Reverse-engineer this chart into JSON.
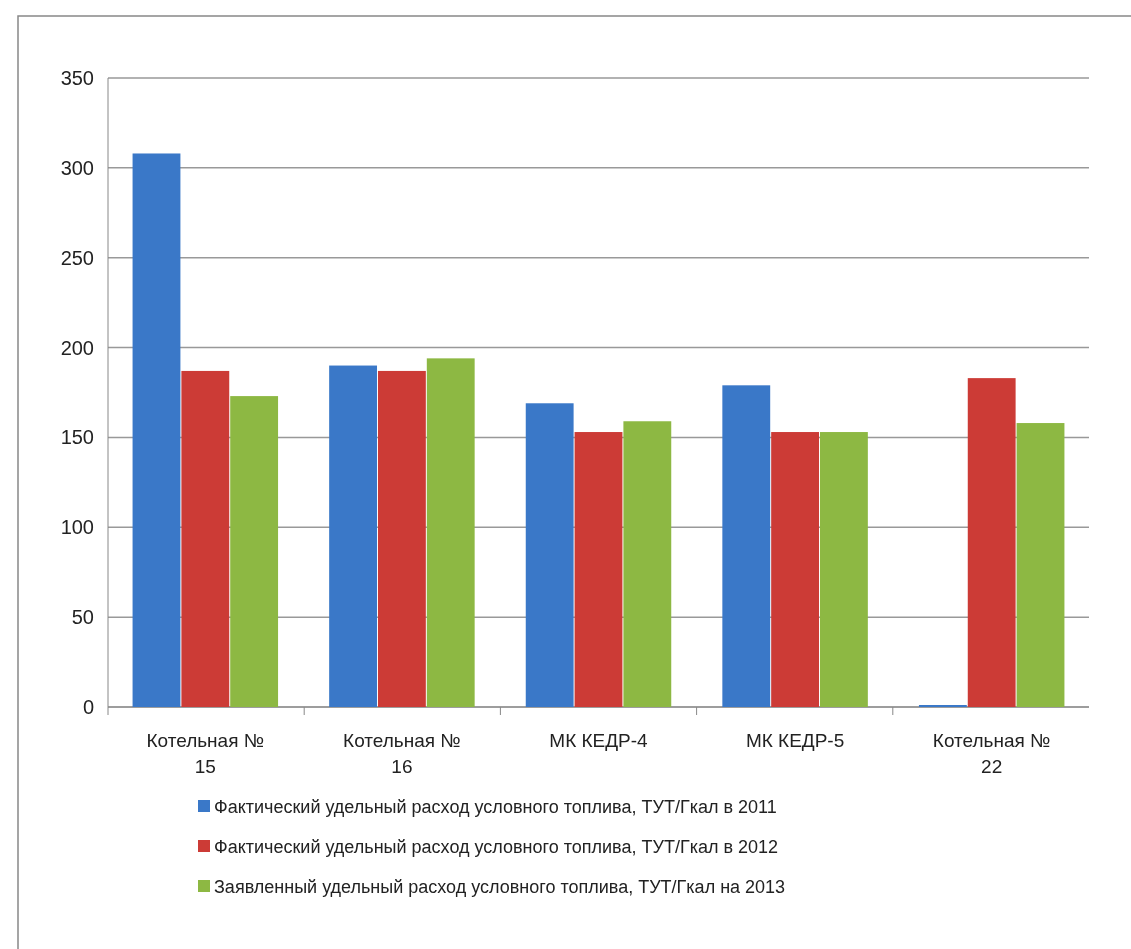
{
  "chart_data": {
    "type": "bar",
    "categories": [
      "Котельная № 15",
      "Котельная № 16",
      "МК КЕДР-4",
      "МК КЕДР-5",
      "Котельная № 22"
    ],
    "series": [
      {
        "name": "Фактический  удельный расход условного топлива,  ТУТ/Гкал в 2011",
        "color": "#3a78c8",
        "values": [
          308,
          190,
          169,
          179,
          0
        ]
      },
      {
        "name": "Фактический  удельный расход условного топлива,  ТУТ/Гкал в 2012",
        "color": "#cc3b36",
        "values": [
          187,
          187,
          153,
          153,
          183
        ]
      },
      {
        "name": "Заявленный  удельный расход условного топлива,  ТУТ/Гкал на 2013",
        "color": "#8db843",
        "values": [
          173,
          194,
          159,
          153,
          158
        ]
      }
    ],
    "ylim": [
      0,
      350
    ],
    "yticks": [
      0,
      50,
      100,
      150,
      200,
      250,
      300,
      350
    ],
    "grid": "y",
    "legend": "bottom"
  }
}
